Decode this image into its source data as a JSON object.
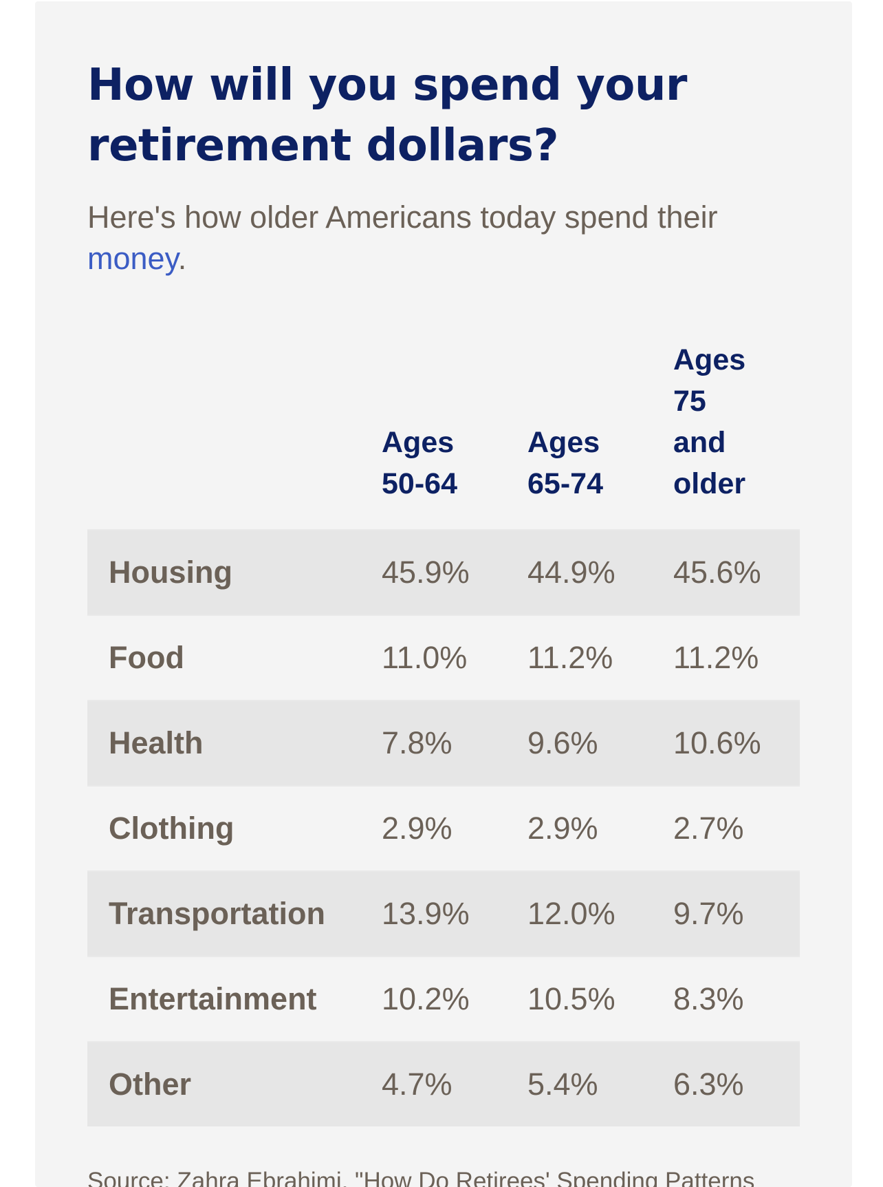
{
  "title_line1": "How will you spend your",
  "title_line2": "retirement dollars?",
  "subtitle_text": "Here's how older Americans today spend their",
  "subtitle_link": "money",
  "subtitle_end": ".",
  "source_text": "Source: Zahra Ebrahimi, \"How Do Retirees' Spending Patterns",
  "colors": {
    "title": "#0d2163",
    "body_text": "#6b6157",
    "link": "#3b5cc4",
    "card_bg": "#f4f4f4",
    "shaded_row": "#e6e6e6"
  },
  "chart_data": {
    "type": "table",
    "columns": [
      [
        "Ages",
        "50-64"
      ],
      [
        "Ages",
        "65-74"
      ],
      [
        "Ages",
        "75",
        "and",
        "older"
      ]
    ],
    "rows": [
      {
        "label": "Housing",
        "values": [
          "45.9%",
          "44.9%",
          "45.6%"
        ]
      },
      {
        "label": "Food",
        "values": [
          "11.0%",
          "11.2%",
          "11.2%"
        ]
      },
      {
        "label": "Health",
        "values": [
          "7.8%",
          "9.6%",
          "10.6%"
        ]
      },
      {
        "label": "Clothing",
        "values": [
          "2.9%",
          "2.9%",
          "2.7%"
        ]
      },
      {
        "label": "Transportation",
        "values": [
          "13.9%",
          "12.0%",
          "9.7%"
        ]
      },
      {
        "label": "Entertainment",
        "values": [
          "10.2%",
          "10.5%",
          "8.3%"
        ]
      },
      {
        "label": "Other",
        "values": [
          "4.7%",
          "5.4%",
          "6.3%"
        ]
      }
    ]
  }
}
